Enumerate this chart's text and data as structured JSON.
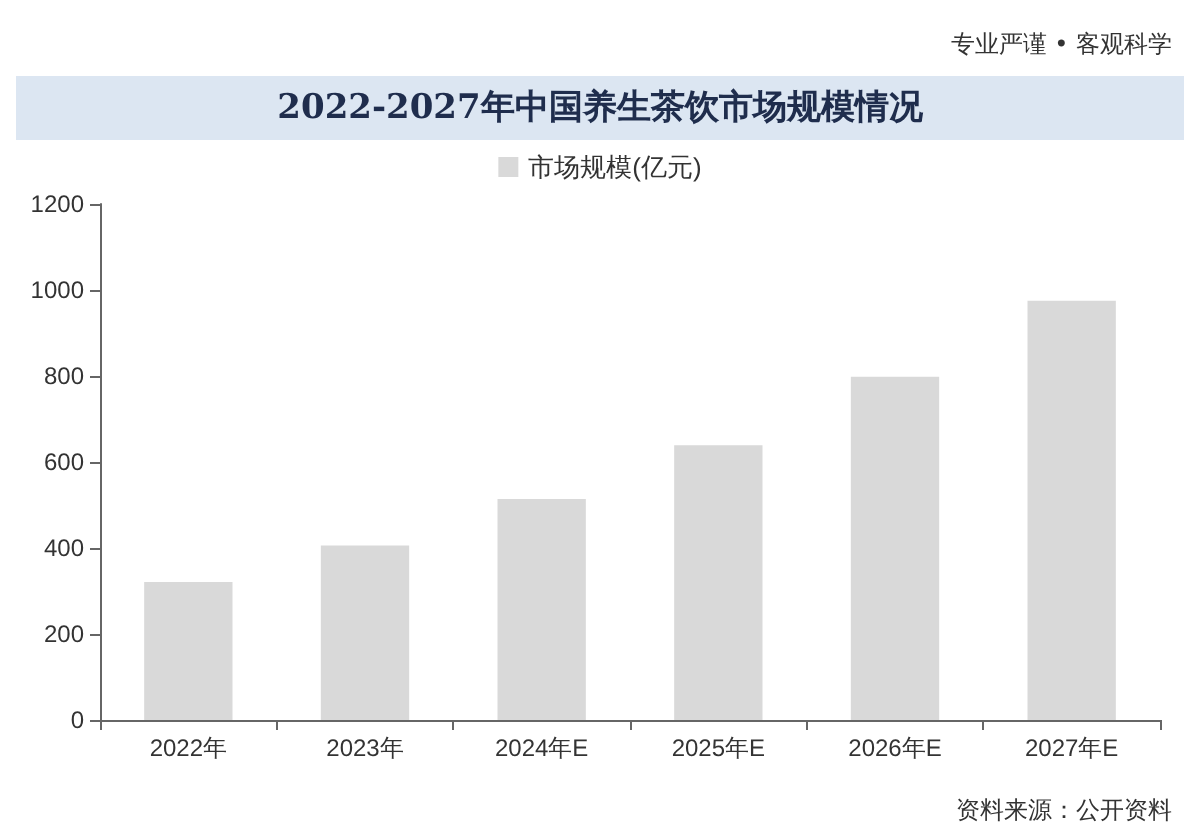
{
  "chart_data": {
    "type": "bar",
    "title": "2022-2027年中国养生茶饮市场规模情况",
    "categories": [
      "2022年",
      "2023年",
      "2024年E",
      "2025年E",
      "2026年E",
      "2027年E"
    ],
    "series": [
      {
        "name": "市场规模(亿元)",
        "color": "#d9d9d9",
        "values": [
          321,
          406,
          514,
          639,
          798,
          975
        ]
      }
    ],
    "ylim": [
      0,
      1200
    ],
    "yticks": [
      0,
      200,
      400,
      600,
      800,
      1000,
      1200
    ],
    "grid": false,
    "legend": "top",
    "annotations": [
      "专业严谨 • 客观科学",
      "资料来源：公开资料"
    ]
  }
}
